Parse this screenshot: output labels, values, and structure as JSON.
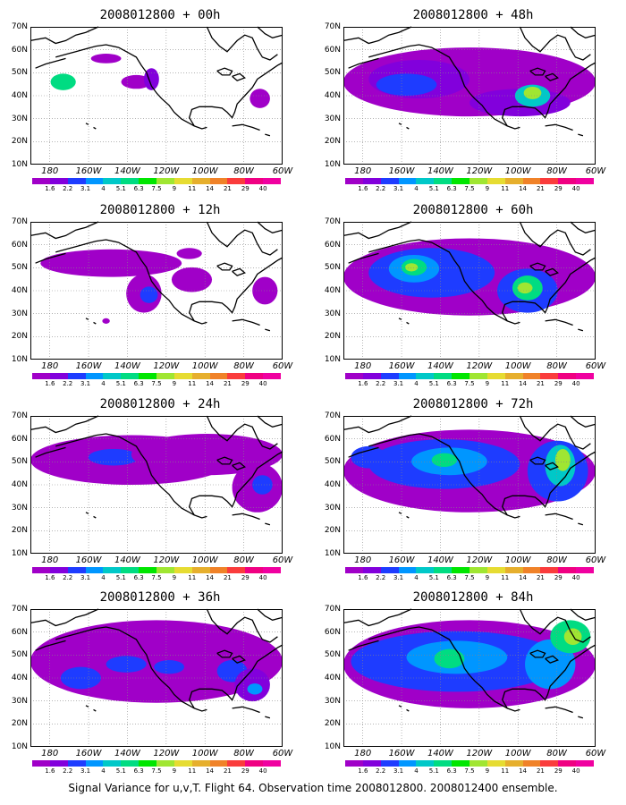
{
  "figure": {
    "caption": "Signal Variance for u,v,T. Flight 64. Observation time 2008012800. 2008012400 ensemble."
  },
  "map_axes": {
    "lat_ticks": [
      "70N",
      "60N",
      "50N",
      "40N",
      "30N",
      "20N",
      "10N"
    ],
    "lon_ticks": [
      "180",
      "160W",
      "140W",
      "120W",
      "100W",
      "80W",
      "60W"
    ],
    "lat_range": [
      10,
      70
    ],
    "lon_range": [
      -190,
      -60
    ],
    "grid": "dotted"
  },
  "colorbar": {
    "labels": [
      "1.6",
      "2.2",
      "3.1",
      "4",
      "5.1",
      "6.3",
      "7.5",
      "9",
      "11",
      "14",
      "21",
      "29",
      "40"
    ],
    "colors": [
      "#a000c8",
      "#8200dc",
      "#1e3cff",
      "#0096ff",
      "#00c8c8",
      "#00dc82",
      "#00e600",
      "#a0e632",
      "#e6dc32",
      "#e6af2d",
      "#f08228",
      "#fa3c3c",
      "#f00082"
    ]
  },
  "panels": [
    {
      "title": "2008012800 + 00h"
    },
    {
      "title": "2008012800 + 48h"
    },
    {
      "title": "2008012800 + 12h"
    },
    {
      "title": "2008012800 + 60h"
    },
    {
      "title": "2008012800 + 24h"
    },
    {
      "title": "2008012800 + 72h"
    },
    {
      "title": "2008012800 + 36h"
    },
    {
      "title": "2008012800 + 84h"
    }
  ]
}
